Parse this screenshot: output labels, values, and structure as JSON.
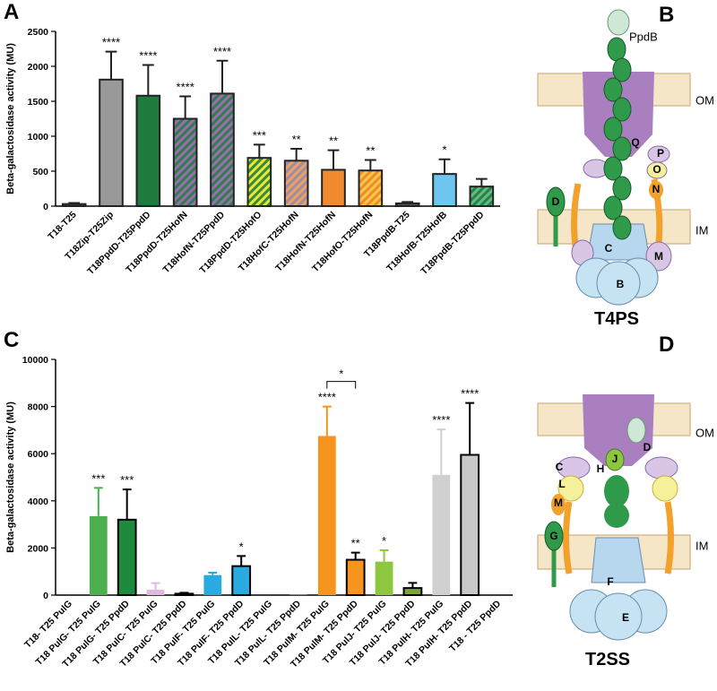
{
  "chart_data": [
    {
      "type": "bar",
      "panel": "A",
      "ylabel": "Beta-galactosidase activity (MU)",
      "categories": [
        "T18-T25",
        "T18Zip-T25Zip",
        "T18PpdD-T25PpdD",
        "T18PpdD-T25HofN",
        "T18HofN-T25PpdD",
        "T18PpdD-T25HofO",
        "T18HofC-T25HofN",
        "T18HofN-T25HofN",
        "T18HofO-T25HofN",
        "T18PpdB-T25",
        "T18HofB-T25HofB",
        "T18PpdB-T25PpdD"
      ],
      "values": [
        30,
        1810,
        1580,
        1250,
        1610,
        690,
        650,
        520,
        510,
        40,
        460,
        280
      ],
      "errors": [
        15,
        400,
        440,
        320,
        470,
        190,
        170,
        280,
        150,
        20,
        210,
        110
      ],
      "significance": [
        null,
        "****",
        "****",
        "****",
        "****",
        "***",
        "**",
        "**",
        "**",
        null,
        "*",
        null
      ],
      "colors": [
        "#555555",
        "#999999",
        "#1e7b3e",
        "#2f7d4f",
        "#9b6fae",
        "#e8e838",
        "#f0a060",
        "#f08a30",
        "#f7c943",
        "#555555",
        "#6ec6f0",
        "#5fbf7f"
      ],
      "hatch_colors": [
        null,
        null,
        null,
        "#9b6fae",
        "#2f7d4f",
        "#3a8a3a",
        "#9b8fa8",
        null,
        "#f08a30",
        null,
        null,
        "#2f7d4f"
      ],
      "edgecolors": [
        "#222222",
        "#222222",
        "#222222",
        "#222222",
        "#222222",
        "#222222",
        "#222222",
        "#222222",
        "#222222",
        "#222222",
        "#222222",
        "#222222"
      ],
      "ylim": [
        0,
        2500
      ],
      "yticks": [
        0,
        500,
        1000,
        1500,
        2000,
        2500
      ]
    },
    {
      "type": "bar",
      "panel": "C",
      "ylabel": "Beta-galactosidase activity (MU)",
      "categories": [
        "T18- T25 PulG",
        "T18 PulG- T25 PulG",
        "T18 PulG- T25 PpdD",
        "T18 PulC- T25 PulG",
        "T18 PulC- T25 PpdD",
        "T18 PulF- T25 PulG",
        "T18 PulF- T25 PpdD",
        "T18 PulL- T25 PulG",
        "T18 PulL- T25 PpdD",
        "T18 PulM- T25 PulG",
        "T18 PulM- T25 PpdD",
        "T18 PulJ- T25 PulG",
        "T18 PulJ- T25 PpdD",
        "T18 PulH- T25 PulG",
        "T18 PulH- T25 PpdD",
        "T18 - T25 PpdD"
      ],
      "values": [
        0,
        3350,
        3200,
        230,
        60,
        850,
        1230,
        0,
        20,
        6750,
        1500,
        1420,
        300,
        5100,
        5950,
        0
      ],
      "errors": [
        0,
        1200,
        1280,
        280,
        40,
        100,
        430,
        0,
        0,
        1250,
        300,
        480,
        220,
        1930,
        2200,
        0
      ],
      "significance": [
        null,
        "***",
        "***",
        null,
        null,
        null,
        "*",
        null,
        null,
        "****",
        "**",
        "*",
        null,
        "****",
        "****",
        null
      ],
      "colors": [
        "#333333",
        "#4cb050",
        "#1e8a3e",
        "#e0b8e0",
        "#9b6fae",
        "#29abe2",
        "#29abe2",
        "#333333",
        "#9b6fae",
        "#f7941d",
        "#f7941d",
        "#8dc63f",
        "#7aa33a",
        "#d0d0d0",
        "#c8c8c8",
        "#333333"
      ],
      "hatch_colors": [
        null,
        null,
        null,
        null,
        null,
        null,
        null,
        null,
        null,
        null,
        null,
        null,
        null,
        null,
        null,
        null
      ],
      "edgecolors": [
        null,
        null,
        "#000000",
        null,
        "#000000",
        null,
        "#000000",
        null,
        null,
        null,
        "#000000",
        null,
        "#000000",
        null,
        "#000000",
        null
      ],
      "comparisons": [
        {
          "from": 9,
          "to": 10,
          "label": "*"
        }
      ],
      "ylim": [
        0,
        10000
      ],
      "yticks": [
        0,
        2000,
        4000,
        6000,
        8000,
        10000
      ]
    }
  ],
  "diagrams": [
    {
      "panel": "B",
      "title": "T4PS",
      "labels": [
        "PpdB",
        "OM",
        "IM",
        "Q",
        "P",
        "O",
        "N",
        "D",
        "C",
        "M",
        "B"
      ]
    },
    {
      "panel": "D",
      "title": "T2SS",
      "labels": [
        "OM",
        "IM",
        "C",
        "H",
        "J",
        "D",
        "L",
        "M",
        "G",
        "F",
        "E"
      ]
    }
  ]
}
